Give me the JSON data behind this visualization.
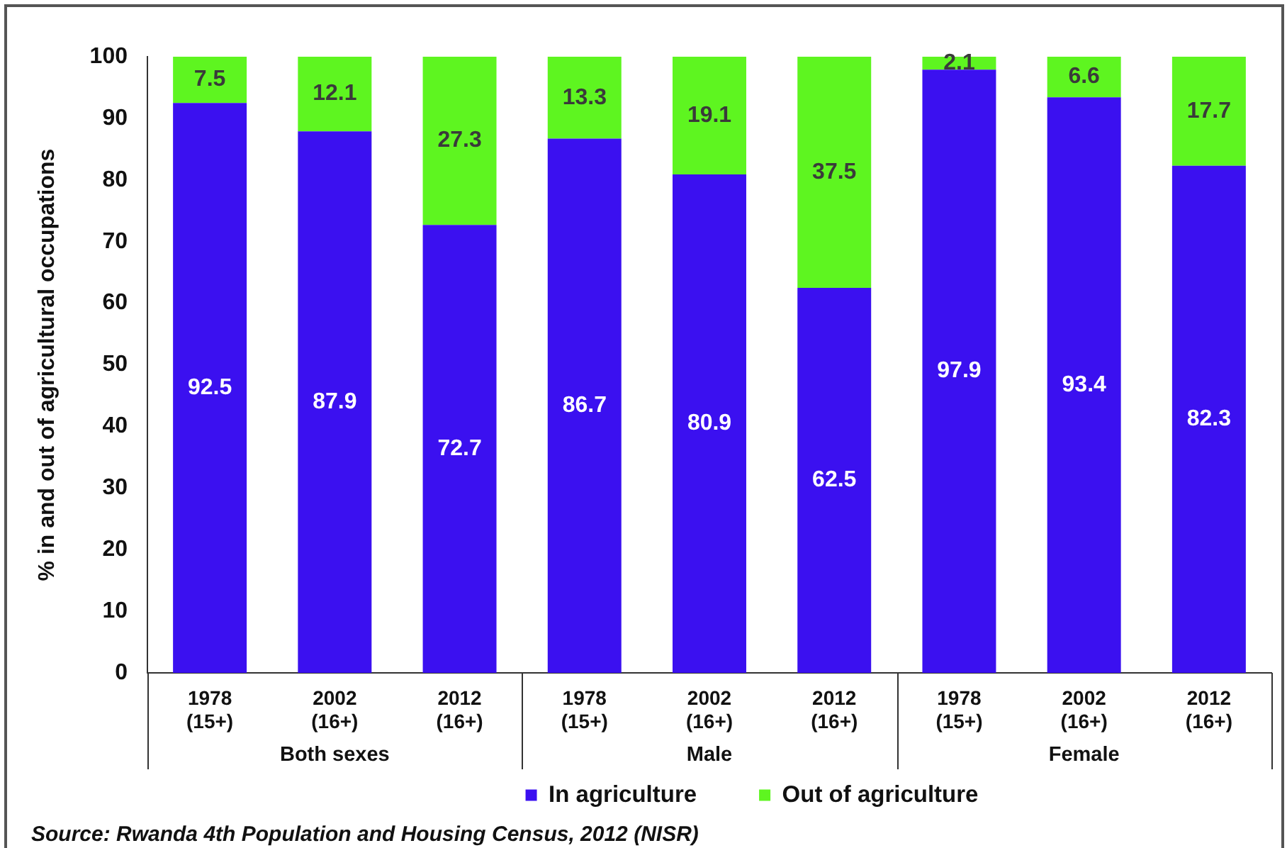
{
  "chart_data": {
    "type": "bar",
    "stacked": true,
    "categories": [
      "1978 (15+)",
      "2002 (16+)",
      "2012 (16+)",
      "1978 (15+)",
      "2002 (16+)",
      "2012 (16+)",
      "1978 (15+)",
      "2002 (16+)",
      "2012 (16+)"
    ],
    "series": [
      {
        "name": "In agriculture",
        "color": "#3b10f0",
        "values": [
          92.5,
          87.9,
          72.7,
          86.7,
          80.9,
          62.5,
          97.9,
          93.4,
          82.3
        ]
      },
      {
        "name": "Out of agriculture",
        "color": "#5ef520",
        "values": [
          7.5,
          12.1,
          27.3,
          13.3,
          19.1,
          37.5,
          2.1,
          6.6,
          17.7
        ]
      }
    ],
    "ylabel": "% in and out of agricultural occupations",
    "ylim": [
      0,
      100
    ],
    "yticks": [
      0,
      10,
      20,
      30,
      40,
      50,
      60,
      70,
      80,
      90,
      100
    ],
    "grid": false,
    "legend": "bottom",
    "data_labels": true,
    "annotations": [
      "Both sexes",
      "Male",
      "Female",
      "Source: Rwanda 4th Population and Housing Census, 2012 (NISR)"
    ]
  }
}
